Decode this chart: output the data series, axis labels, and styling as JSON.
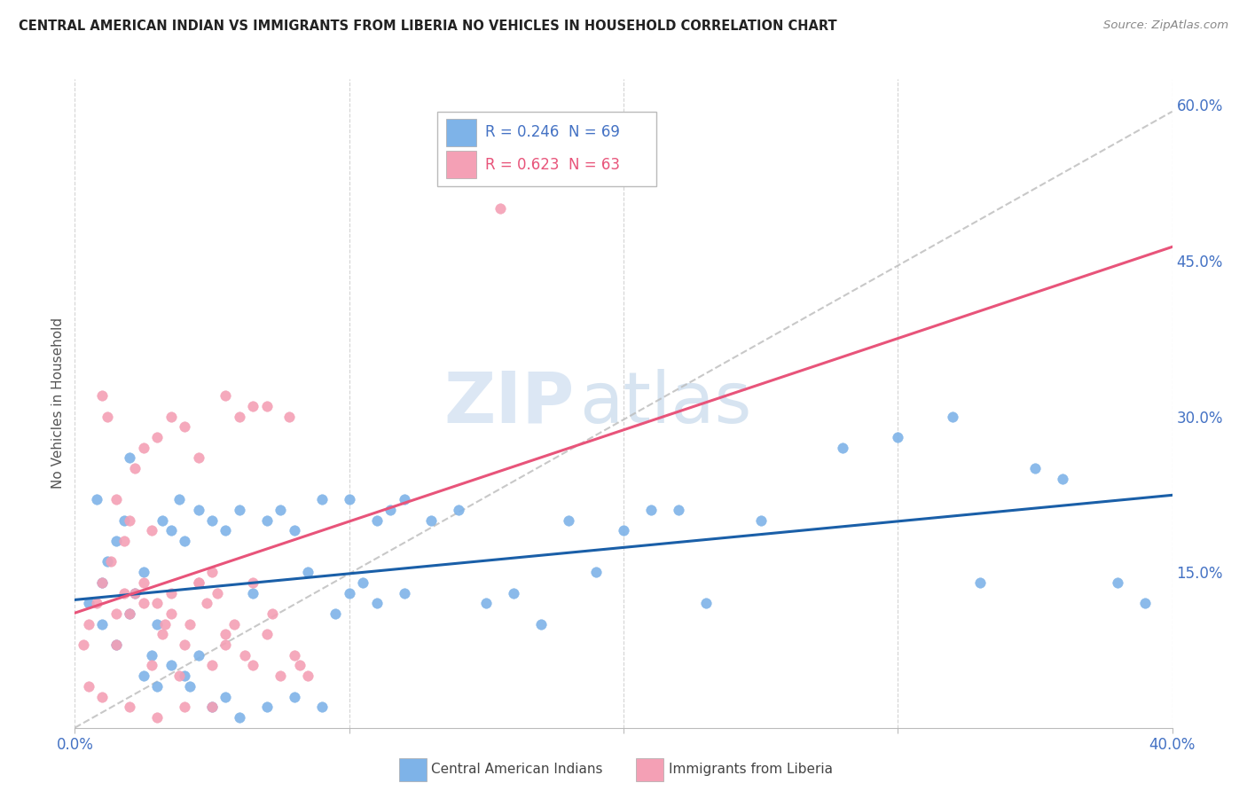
{
  "title": "CENTRAL AMERICAN INDIAN VS IMMIGRANTS FROM LIBERIA NO VEHICLES IN HOUSEHOLD CORRELATION CHART",
  "source": "Source: ZipAtlas.com",
  "ylabel": "No Vehicles in Household",
  "xmin": 0.0,
  "xmax": 0.4,
  "ymin": 0.0,
  "ymax": 0.625,
  "series1_name": "Central American Indians",
  "series1_color": "#7eb3e8",
  "series1_line_color": "#1a5fa8",
  "series2_name": "Immigrants from Liberia",
  "series2_color": "#f4a0b5",
  "series2_line_color": "#e8547a",
  "legend_R1": "R = 0.246",
  "legend_N1": "N = 69",
  "legend_R2": "R = 0.623",
  "legend_N2": "N = 63",
  "blue_scatter_x": [
    0.005,
    0.008,
    0.01,
    0.01,
    0.012,
    0.015,
    0.015,
    0.018,
    0.02,
    0.02,
    0.022,
    0.025,
    0.025,
    0.028,
    0.03,
    0.03,
    0.032,
    0.035,
    0.035,
    0.038,
    0.04,
    0.04,
    0.042,
    0.045,
    0.045,
    0.05,
    0.05,
    0.055,
    0.055,
    0.06,
    0.06,
    0.065,
    0.07,
    0.07,
    0.075,
    0.08,
    0.08,
    0.085,
    0.09,
    0.09,
    0.095,
    0.1,
    0.1,
    0.105,
    0.11,
    0.11,
    0.115,
    0.12,
    0.12,
    0.13,
    0.14,
    0.15,
    0.16,
    0.17,
    0.18,
    0.19,
    0.2,
    0.21,
    0.22,
    0.23,
    0.25,
    0.28,
    0.3,
    0.32,
    0.33,
    0.35,
    0.36,
    0.38,
    0.39
  ],
  "blue_scatter_y": [
    0.12,
    0.22,
    0.14,
    0.1,
    0.16,
    0.18,
    0.08,
    0.2,
    0.26,
    0.11,
    0.13,
    0.05,
    0.15,
    0.07,
    0.1,
    0.04,
    0.2,
    0.19,
    0.06,
    0.22,
    0.05,
    0.18,
    0.04,
    0.07,
    0.21,
    0.02,
    0.2,
    0.03,
    0.19,
    0.01,
    0.21,
    0.13,
    0.02,
    0.2,
    0.21,
    0.03,
    0.19,
    0.15,
    0.02,
    0.22,
    0.11,
    0.13,
    0.22,
    0.14,
    0.2,
    0.12,
    0.21,
    0.13,
    0.22,
    0.2,
    0.21,
    0.12,
    0.13,
    0.1,
    0.2,
    0.15,
    0.19,
    0.21,
    0.21,
    0.12,
    0.2,
    0.27,
    0.28,
    0.3,
    0.14,
    0.25,
    0.24,
    0.14,
    0.12
  ],
  "pink_scatter_x": [
    0.003,
    0.005,
    0.008,
    0.01,
    0.01,
    0.012,
    0.013,
    0.015,
    0.015,
    0.018,
    0.018,
    0.02,
    0.02,
    0.022,
    0.022,
    0.025,
    0.025,
    0.028,
    0.028,
    0.03,
    0.03,
    0.032,
    0.033,
    0.035,
    0.035,
    0.038,
    0.04,
    0.04,
    0.042,
    0.045,
    0.045,
    0.048,
    0.05,
    0.05,
    0.052,
    0.055,
    0.055,
    0.058,
    0.06,
    0.062,
    0.065,
    0.065,
    0.07,
    0.07,
    0.072,
    0.075,
    0.078,
    0.08,
    0.082,
    0.085,
    0.01,
    0.02,
    0.03,
    0.04,
    0.05,
    0.155,
    0.005,
    0.015,
    0.025,
    0.035,
    0.045,
    0.055,
    0.065
  ],
  "pink_scatter_y": [
    0.08,
    0.1,
    0.12,
    0.32,
    0.14,
    0.3,
    0.16,
    0.22,
    0.08,
    0.13,
    0.18,
    0.11,
    0.2,
    0.25,
    0.13,
    0.27,
    0.14,
    0.06,
    0.19,
    0.12,
    0.28,
    0.09,
    0.1,
    0.3,
    0.11,
    0.05,
    0.08,
    0.29,
    0.1,
    0.14,
    0.26,
    0.12,
    0.06,
    0.15,
    0.13,
    0.32,
    0.08,
    0.1,
    0.3,
    0.07,
    0.06,
    0.14,
    0.09,
    0.31,
    0.11,
    0.05,
    0.3,
    0.07,
    0.06,
    0.05,
    0.03,
    0.02,
    0.01,
    0.02,
    0.02,
    0.5,
    0.04,
    0.11,
    0.12,
    0.13,
    0.14,
    0.09,
    0.31
  ],
  "watermark_zip": "ZIP",
  "watermark_atlas": "atlas",
  "background_color": "#ffffff",
  "grid_color": "#d0d0d0",
  "title_color": "#222222",
  "tick_color": "#4472c4",
  "ref_line_color": "#bbbbbb"
}
